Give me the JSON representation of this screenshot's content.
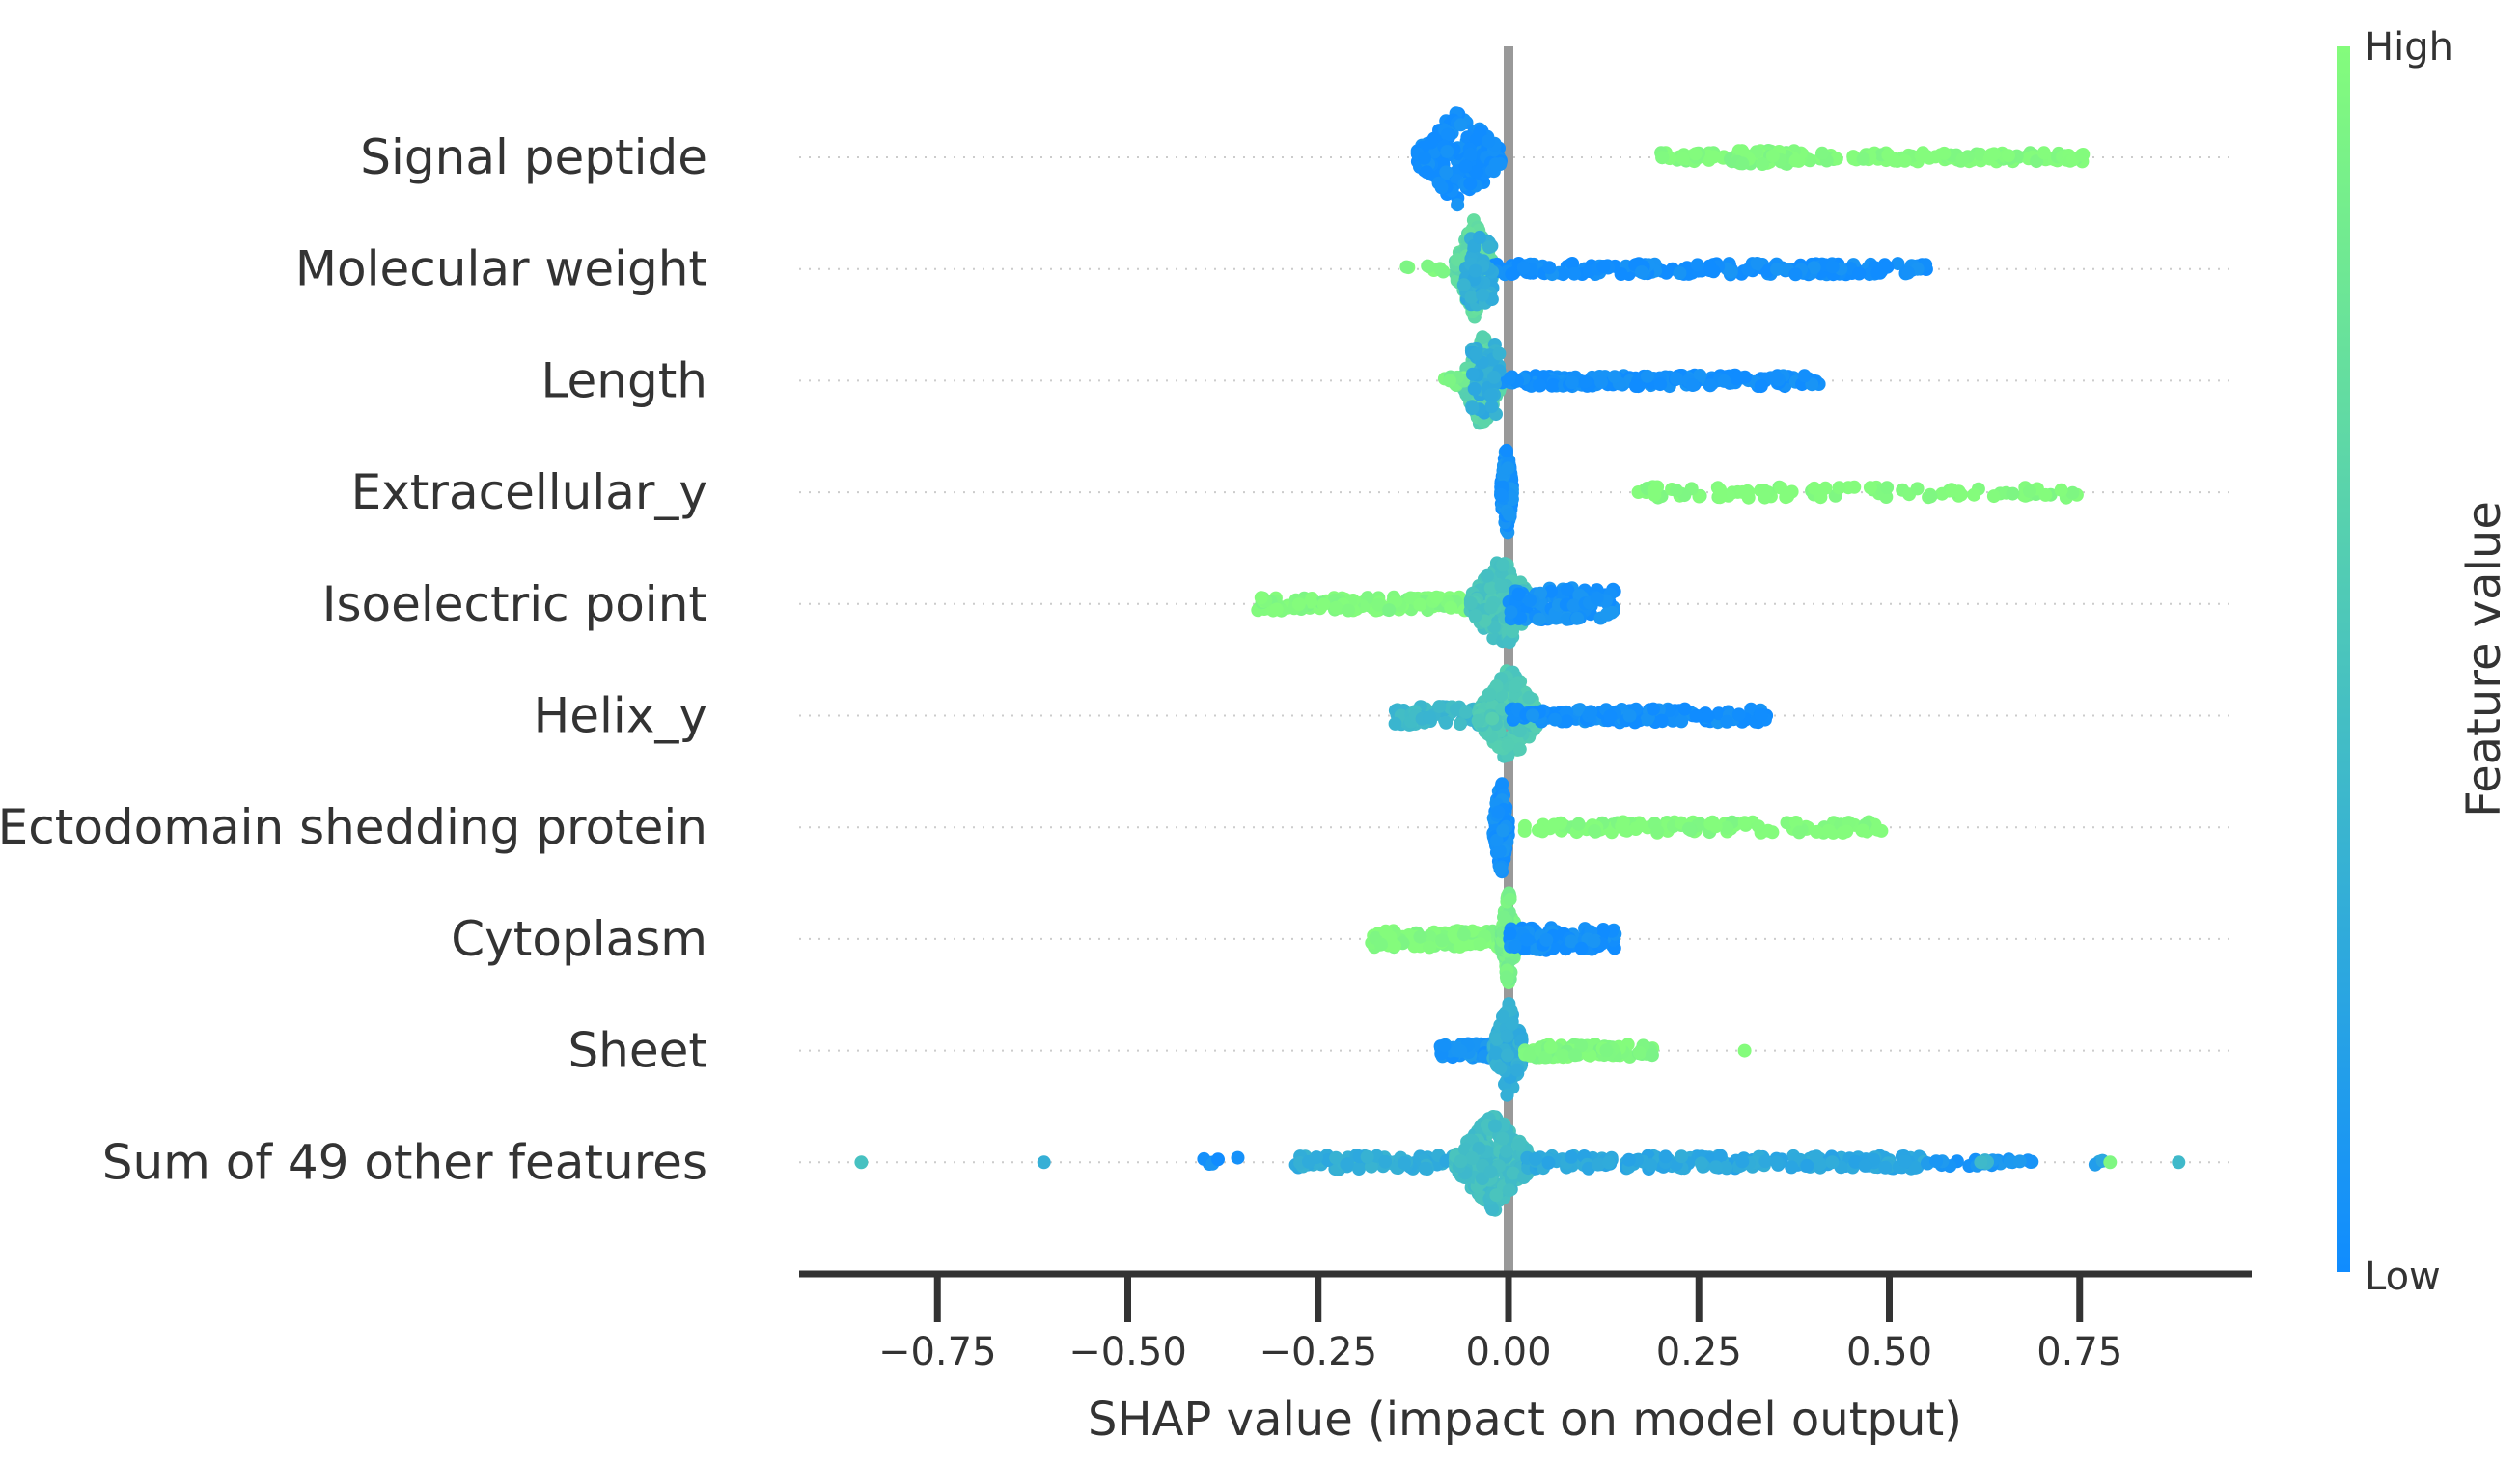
{
  "chart_data": {
    "type": "scatter",
    "subtype": "shap-beeswarm",
    "xlabel": "SHAP value (impact on model output)",
    "xlim": [
      -0.94,
      0.97
    ],
    "xticks": [
      -0.75,
      -0.5,
      -0.25,
      0.0,
      0.25,
      0.5,
      0.75
    ],
    "xtick_labels": [
      "−0.75",
      "−0.50",
      "−0.25",
      "0.00",
      "0.25",
      "0.50",
      "0.75"
    ],
    "reference_line_x": 0.0,
    "colorbar": {
      "title": "Feature value",
      "high_label": "High",
      "low_label": "Low",
      "low_color": "#108cff",
      "high_color": "#84fc7c"
    },
    "features": [
      {
        "name": "Signal peptide",
        "groups": [
          {
            "range": [
              -0.12,
              -0.01
            ],
            "count": 220,
            "color": 0.02,
            "spread": 1.0
          },
          {
            "range": [
              0.2,
              0.77
            ],
            "count": 180,
            "color": 1.0,
            "spread": 0.1
          },
          {
            "range": [
              0.29,
              0.38
            ],
            "count": 50,
            "color": 0.98,
            "spread": 0.15
          }
        ]
      },
      {
        "name": "Molecular weight",
        "groups": [
          {
            "range": [
              -0.07,
              -0.02
            ],
            "count": 160,
            "color": 0.7,
            "spread": 1.0
          },
          {
            "range": [
              -0.14,
              -0.08
            ],
            "count": 8,
            "color": 0.95,
            "spread": 0.1
          },
          {
            "range": [
              -0.02,
              0.55
            ],
            "count": 200,
            "color": 0.02,
            "spread": 0.12
          },
          {
            "range": [
              -0.06,
              -0.02
            ],
            "count": 60,
            "color": 0.3,
            "spread": 0.8
          }
        ]
      },
      {
        "name": "Length",
        "groups": [
          {
            "range": [
              -0.06,
              -0.01
            ],
            "count": 150,
            "color": 0.65,
            "spread": 1.0
          },
          {
            "range": [
              -0.09,
              -0.05
            ],
            "count": 10,
            "color": 0.9,
            "spread": 0.1
          },
          {
            "range": [
              -0.01,
              0.41
            ],
            "count": 190,
            "color": 0.02,
            "spread": 0.12
          },
          {
            "range": [
              -0.05,
              -0.01
            ],
            "count": 50,
            "color": 0.3,
            "spread": 0.8
          }
        ]
      },
      {
        "name": "Extracellular_y",
        "groups": [
          {
            "range": [
              -0.01,
              0.005
            ],
            "count": 120,
            "color": 0.05,
            "spread": 1.0
          },
          {
            "range": [
              0.17,
              0.76
            ],
            "count": 90,
            "color": 1.0,
            "spread": 0.12
          }
        ]
      },
      {
        "name": "Isoelectric point",
        "groups": [
          {
            "range": [
              -0.33,
              -0.05
            ],
            "count": 140,
            "color": 0.98,
            "spread": 0.15
          },
          {
            "range": [
              -0.05,
              0.03
            ],
            "count": 200,
            "color": 0.5,
            "spread": 1.0
          },
          {
            "range": [
              0.0,
              0.14
            ],
            "count": 120,
            "color": 0.05,
            "spread": 0.35
          }
        ]
      },
      {
        "name": "Helix_y",
        "groups": [
          {
            "range": [
              -0.15,
              -0.01
            ],
            "count": 90,
            "color": 0.4,
            "spread": 0.2
          },
          {
            "range": [
              -0.04,
              0.04
            ],
            "count": 220,
            "color": 0.55,
            "spread": 1.0
          },
          {
            "range": [
              0.0,
              0.34
            ],
            "count": 130,
            "color": 0.03,
            "spread": 0.15
          }
        ]
      },
      {
        "name": "Ectodomain shedding protein",
        "groups": [
          {
            "range": [
              -0.02,
              0.0
            ],
            "count": 130,
            "color": 0.04,
            "spread": 1.0
          },
          {
            "range": [
              0.02,
              0.49
            ],
            "count": 120,
            "color": 1.0,
            "spread": 0.12
          }
        ]
      },
      {
        "name": "Cytoplasm",
        "groups": [
          {
            "range": [
              -0.18,
              -0.01
            ],
            "count": 110,
            "color": 0.98,
            "spread": 0.18
          },
          {
            "range": [
              -0.01,
              0.01
            ],
            "count": 120,
            "color": 0.9,
            "spread": 1.0
          },
          {
            "range": [
              0.0,
              0.14
            ],
            "count": 110,
            "color": 0.03,
            "spread": 0.25
          }
        ]
      },
      {
        "name": "Sheet",
        "groups": [
          {
            "range": [
              -0.09,
              -0.01
            ],
            "count": 90,
            "color": 0.08,
            "spread": 0.15
          },
          {
            "range": [
              -0.02,
              0.02
            ],
            "count": 160,
            "color": 0.3,
            "spread": 1.0
          },
          {
            "range": [
              0.02,
              0.19
            ],
            "count": 100,
            "color": 0.97,
            "spread": 0.15
          },
          {
            "range": [
              0.31,
              0.31
            ],
            "count": 1,
            "color": 1.0,
            "spread": 0.0
          }
        ]
      },
      {
        "name": "Sum of 49 other features",
        "groups": [
          {
            "range": [
              -0.85,
              -0.85
            ],
            "count": 1,
            "color": 0.45,
            "spread": 0.0
          },
          {
            "range": [
              -0.61,
              -0.61
            ],
            "count": 1,
            "color": 0.35,
            "spread": 0.0
          },
          {
            "range": [
              -0.4,
              -0.35
            ],
            "count": 6,
            "color": 0.05,
            "spread": 0.1
          },
          {
            "range": [
              -0.28,
              -0.05
            ],
            "count": 80,
            "color": 0.3,
            "spread": 0.15
          },
          {
            "range": [
              -0.07,
              0.03
            ],
            "count": 320,
            "color": 0.45,
            "spread": 1.0
          },
          {
            "range": [
              0.02,
              0.55
            ],
            "count": 220,
            "color": 0.25,
            "spread": 0.14
          },
          {
            "range": [
              0.55,
              0.69
            ],
            "count": 25,
            "color": 0.1,
            "spread": 0.08
          },
          {
            "range": [
              0.62,
              0.63
            ],
            "count": 4,
            "color": 0.4,
            "spread": 0.05
          },
          {
            "range": [
              0.77,
              0.79
            ],
            "count": 4,
            "color": 0.2,
            "spread": 0.05
          },
          {
            "range": [
              0.79,
              0.79
            ],
            "count": 1,
            "color": 0.9,
            "spread": 0.0
          },
          {
            "range": [
              0.88,
              0.88
            ],
            "count": 1,
            "color": 0.45,
            "spread": 0.0
          }
        ]
      }
    ]
  }
}
